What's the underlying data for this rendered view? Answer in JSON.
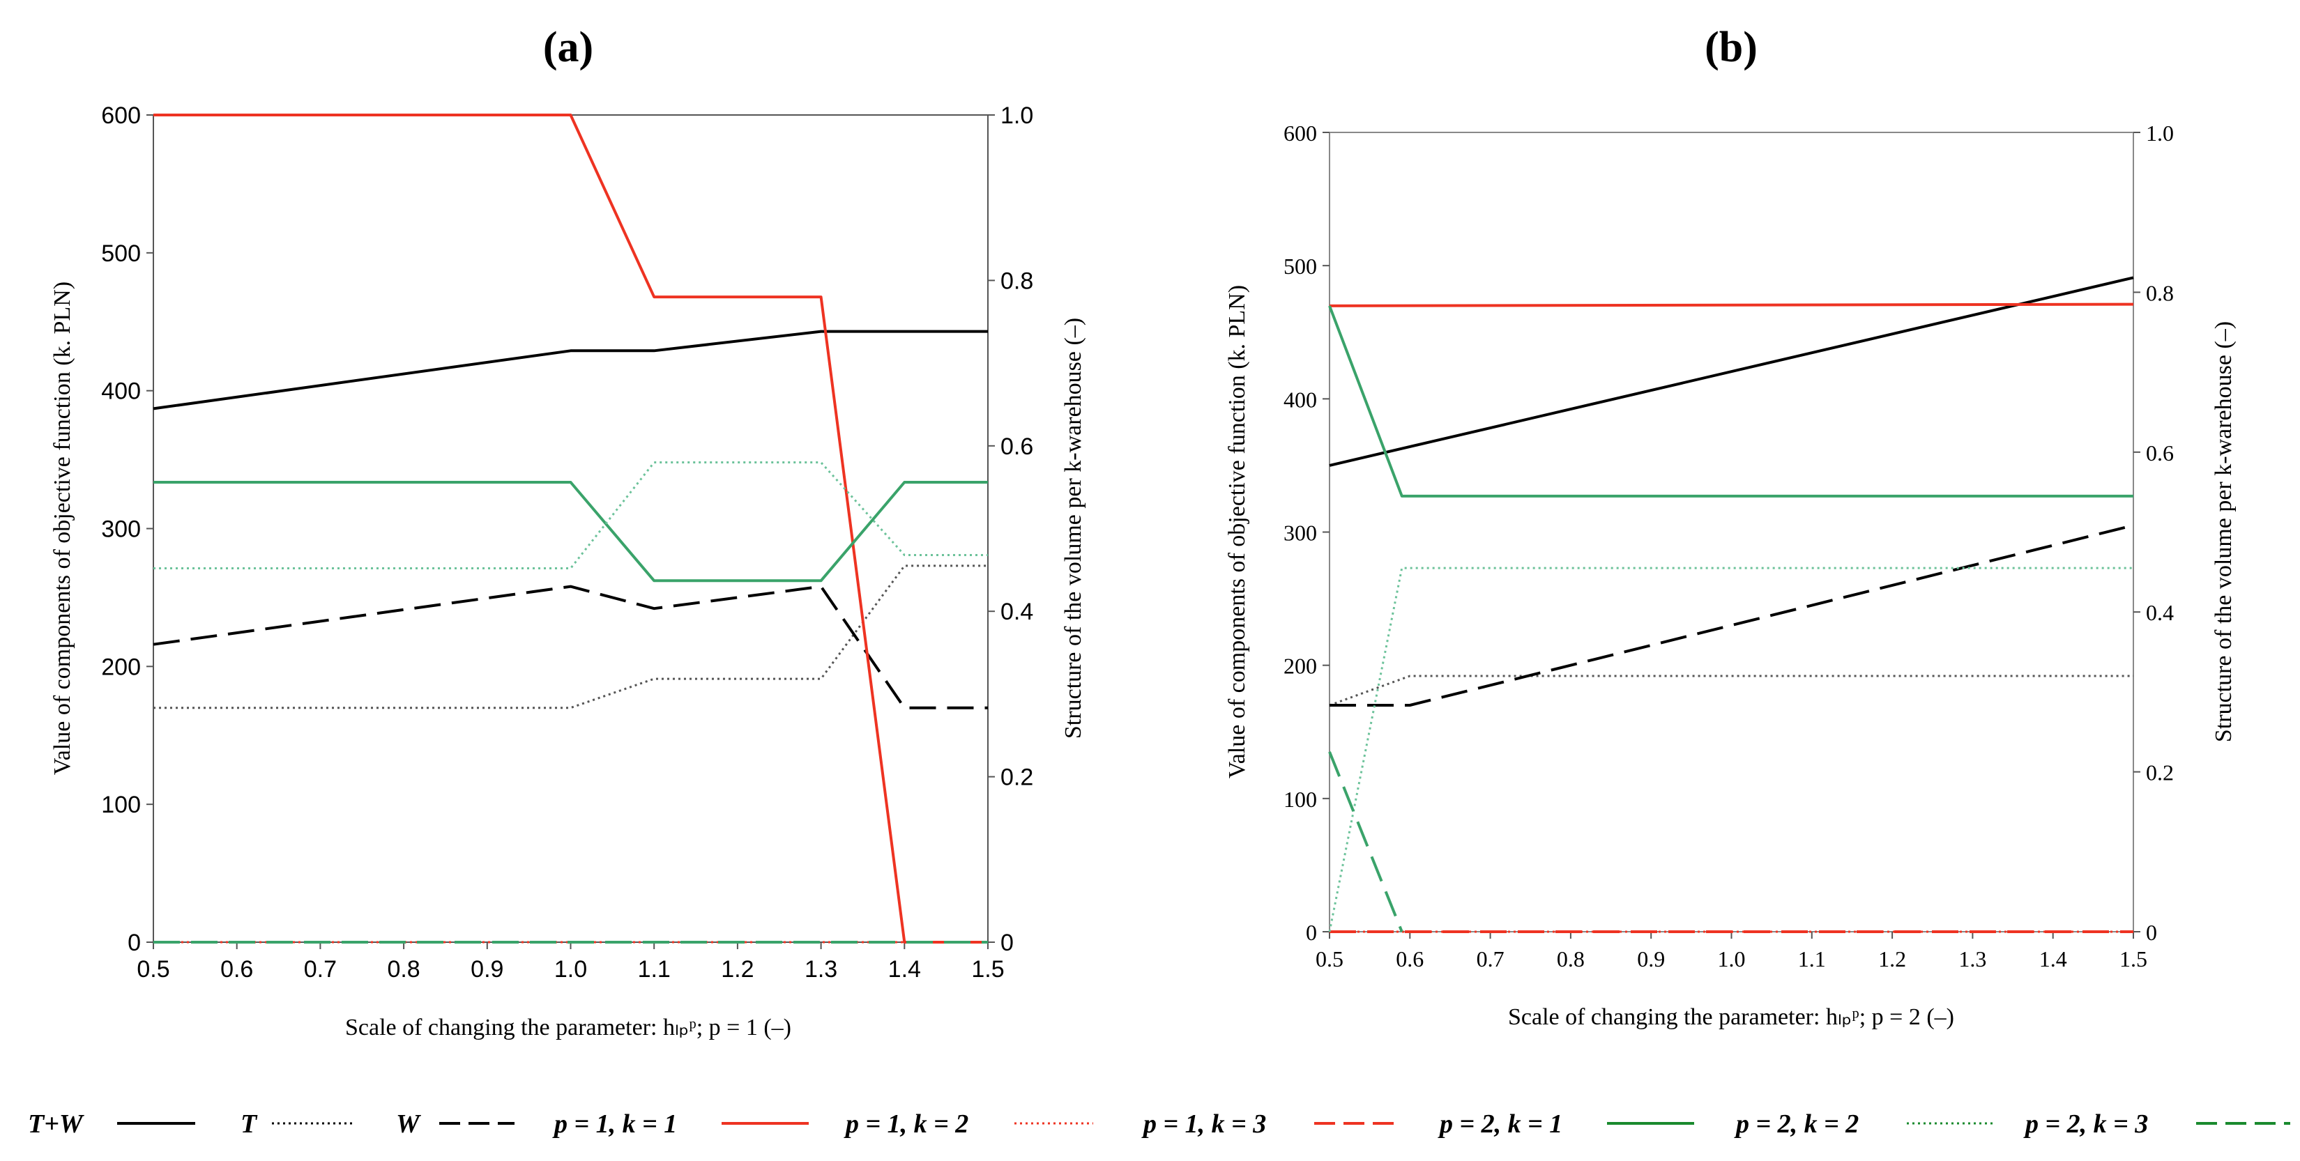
{
  "chart_data": [
    {
      "type": "line",
      "panel_label": "(a)",
      "xlabel": "Scale of changing the parameter: hₗₚᵖ; p = 1 (–)",
      "ylabel": "Value of components of objective function (k. PLN)",
      "y2label": "Structure of the volume per k-warehouse (–)",
      "xlim": [
        0.5,
        1.5
      ],
      "ylim": [
        0,
        600
      ],
      "y2lim": [
        0,
        1.0
      ],
      "x_ticks": [
        "0.5",
        "0.6",
        "0.7",
        "0.8",
        "0.9",
        "1.0",
        "1.1",
        "1.2",
        "1.3",
        "1.4",
        "1.5"
      ],
      "y_ticks": [
        "0",
        "100",
        "200",
        "300",
        "400",
        "500",
        "600"
      ],
      "y2_ticks": [
        "0",
        "0.2",
        "0.4",
        "0.6",
        "0.8",
        "1.0"
      ],
      "series": [
        {
          "name": "T+W",
          "axis": "left",
          "x": [
            0.5,
            1.0,
            1.1,
            1.3,
            1.5
          ],
          "values": [
            387,
            429,
            429,
            443,
            443
          ]
        },
        {
          "name": "T",
          "axis": "left",
          "x": [
            0.5,
            1.0,
            1.1,
            1.3,
            1.4,
            1.5
          ],
          "values": [
            170,
            170,
            191,
            191,
            273,
            273
          ]
        },
        {
          "name": "W",
          "axis": "left",
          "x": [
            0.5,
            1.0,
            1.1,
            1.3,
            1.4,
            1.5
          ],
          "values": [
            216,
            258,
            242,
            258,
            170,
            170
          ]
        },
        {
          "name": "p = 1, k = 1",
          "axis": "right",
          "x": [
            0.5,
            1.0,
            1.1,
            1.3,
            1.4,
            1.5
          ],
          "values": [
            1.0,
            1.0,
            0.78,
            0.78,
            0.0,
            0.0
          ]
        },
        {
          "name": "p = 1, k = 2",
          "axis": "right",
          "x": [
            0.5,
            1.5
          ],
          "values": [
            0.0,
            0.0
          ]
        },
        {
          "name": "p = 1, k = 3",
          "axis": "right",
          "x": [
            0.5,
            1.5
          ],
          "values": [
            0.0,
            0.0
          ]
        },
        {
          "name": "p = 2, k = 1",
          "axis": "right",
          "x": [
            0.5,
            1.0,
            1.1,
            1.3,
            1.4,
            1.5
          ],
          "values": [
            0.556,
            0.556,
            0.437,
            0.437,
            0.556,
            0.556
          ]
        },
        {
          "name": "p = 2, k = 2",
          "axis": "right",
          "x": [
            0.5,
            1.0,
            1.1,
            1.3,
            1.4,
            1.5
          ],
          "values": [
            0.452,
            0.452,
            0.58,
            0.58,
            0.468,
            0.468
          ]
        },
        {
          "name": "p = 2, k = 3",
          "axis": "right",
          "x": [
            0.5,
            1.5
          ],
          "values": [
            0.0,
            0.0
          ]
        }
      ]
    },
    {
      "type": "line",
      "panel_label": "(b)",
      "xlabel": "Scale of changing the parameter: hₗₚᵖ; p = 2 (–)",
      "ylabel": "Value of components of objective function (k. PLN)",
      "y2label": "Structure of the volume per k-warehouse (–)",
      "xlim": [
        0.5,
        1.5
      ],
      "ylim": [
        0,
        600
      ],
      "y2lim": [
        0,
        1.0
      ],
      "x_ticks": [
        "0.5",
        "0.6",
        "0.7",
        "0.8",
        "0.9",
        "1.0",
        "1.1",
        "1.2",
        "1.3",
        "1.4",
        "1.5"
      ],
      "y_ticks": [
        "0",
        "100",
        "200",
        "300",
        "400",
        "500",
        "600"
      ],
      "y2_ticks": [
        "0",
        "0.2",
        "0.4",
        "0.6",
        "0.8",
        "1.0"
      ],
      "series": [
        {
          "name": "T+W",
          "axis": "left",
          "x": [
            0.5,
            1.5
          ],
          "values": [
            350,
            491
          ]
        },
        {
          "name": "T",
          "axis": "left",
          "x": [
            0.5,
            0.6,
            1.5
          ],
          "values": [
            170,
            192,
            192
          ]
        },
        {
          "name": "W",
          "axis": "left",
          "x": [
            0.5,
            0.6,
            1.5
          ],
          "values": [
            170,
            170,
            305
          ]
        },
        {
          "name": "p = 1, k = 1",
          "axis": "right",
          "x": [
            0.5,
            1.5
          ],
          "values": [
            0.783,
            0.785
          ]
        },
        {
          "name": "p = 1, k = 2",
          "axis": "right",
          "x": [
            0.5,
            1.5
          ],
          "values": [
            0.0,
            0.0
          ]
        },
        {
          "name": "p = 1, k = 3",
          "axis": "right",
          "x": [
            0.5,
            1.5
          ],
          "values": [
            0.0,
            0.0
          ]
        },
        {
          "name": "p = 2, k = 1",
          "axis": "right",
          "x": [
            0.5,
            0.59,
            1.5
          ],
          "values": [
            0.783,
            0.545,
            0.545
          ]
        },
        {
          "name": "p = 2, k = 2",
          "axis": "right",
          "x": [
            0.5,
            0.59,
            1.5
          ],
          "values": [
            0.0,
            0.455,
            0.455
          ]
        },
        {
          "name": "p = 2, k = 3",
          "axis": "right",
          "x": [
            0.5,
            0.59
          ],
          "values": [
            0.225,
            0.0
          ]
        }
      ]
    }
  ],
  "legend": [
    {
      "label": "T+W",
      "color": "#000000",
      "dash": "solid"
    },
    {
      "label": "T",
      "color": "#000000",
      "dash": "dotted"
    },
    {
      "label": "W",
      "color": "#000000",
      "dash": "dashed"
    },
    {
      "label": "p = 1, k = 1",
      "color": "#ee3322",
      "dash": "solid"
    },
    {
      "label": "p = 1, k = 2",
      "color": "#ee3322",
      "dash": "dotted"
    },
    {
      "label": "p = 1, k = 3",
      "color": "#ee3322",
      "dash": "dashed"
    },
    {
      "label": "p = 2, k = 1",
      "color": "#1a8a2e",
      "dash": "solid"
    },
    {
      "label": "p = 2, k = 2",
      "color": "#1a8a2e",
      "dash": "dotted"
    },
    {
      "label": "p = 2, k = 3",
      "color": "#1a8a2e",
      "dash": "dashed"
    }
  ],
  "styles": {
    "T+W": {
      "color": "#000000",
      "dash": "solid"
    },
    "T": {
      "color": "#555555",
      "dash": "dotted"
    },
    "W": {
      "color": "#000000",
      "dash": "dashed"
    },
    "p = 1, k = 1": {
      "color": "#ee3322",
      "dash": "solid"
    },
    "p = 1, k = 2": {
      "color": "#ee3322",
      "dash": "dotted"
    },
    "p = 1, k = 3": {
      "color": "#ee3322",
      "dash": "dashed"
    },
    "p = 2, k = 1": {
      "color": "#3aa36a",
      "dash": "solid"
    },
    "p = 2, k = 2": {
      "color": "#6cc29a",
      "dash": "dotted"
    },
    "p = 2, k = 3": {
      "color": "#3aa36a",
      "dash": "dashed"
    }
  }
}
